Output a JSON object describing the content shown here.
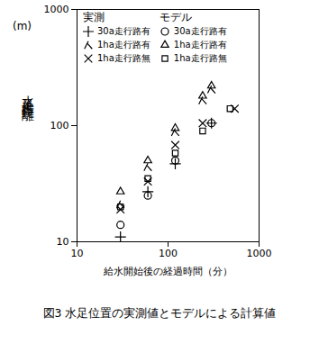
{
  "chart_data": {
    "type": "scatter",
    "title": "図3 水足位置の実測値とモデルによる計算値",
    "xlabel": "給水開始後の経過時間（分）",
    "ylabel": "水足進行距離",
    "y_unit": "(m)",
    "log": true,
    "grid": false,
    "legend": "top-left",
    "xlim": [
      10,
      1000
    ],
    "xticks": [
      10,
      100,
      1000
    ],
    "ylim": [
      10,
      1000
    ],
    "yticks": [
      10,
      100,
      1000
    ],
    "series": [
      {
        "group": "実測",
        "name": "30a走行路有",
        "marker": "plus",
        "color": "#000000",
        "x": [
          30,
          60,
          120,
          300
        ],
        "values": [
          11,
          27,
          47,
          105
        ]
      },
      {
        "group": "実測",
        "name": "1ha走行路有",
        "marker": "lambda",
        "color": "#000000",
        "x": [
          30,
          60,
          120,
          240,
          300
        ],
        "values": [
          21,
          44,
          88,
          165,
          205
        ]
      },
      {
        "group": "実測",
        "name": "1ha走行路無",
        "marker": "times",
        "color": "#000000",
        "x": [
          30,
          60,
          120,
          240,
          540
        ],
        "values": [
          19,
          33,
          68,
          105,
          140
        ]
      },
      {
        "group": "モデル",
        "name": "30a走行路有",
        "marker": "circle",
        "color": "#000000",
        "x": [
          30,
          60,
          120,
          300
        ],
        "values": [
          14,
          25,
          50,
          105
        ]
      },
      {
        "group": "モデル",
        "name": "1ha走行路有",
        "marker": "triangle",
        "color": "#000000",
        "x": [
          30,
          60,
          120,
          240,
          300
        ],
        "values": [
          27,
          50,
          95,
          180,
          220
        ]
      },
      {
        "group": "モデル",
        "name": "1ha走行路無",
        "marker": "square",
        "color": "#000000",
        "x": [
          30,
          60,
          120,
          240,
          480
        ],
        "values": [
          20,
          35,
          58,
          90,
          140
        ]
      }
    ]
  }
}
